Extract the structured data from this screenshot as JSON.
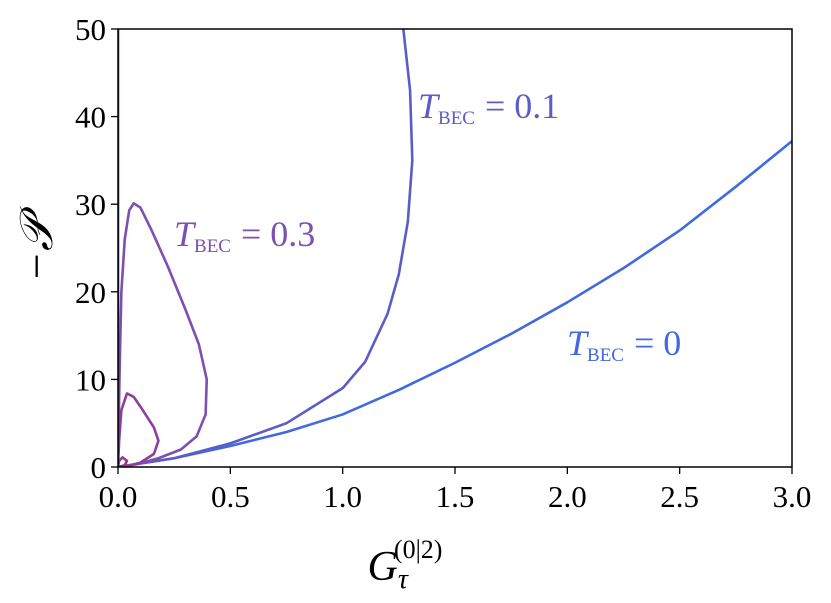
{
  "chart_data": {
    "type": "line",
    "xlabel": {
      "base": "G",
      "sub": "τ",
      "sup": "(0|2)"
    },
    "ylabel": "−𝒫",
    "xlim": [
      0,
      3
    ],
    "ylim": [
      0,
      50
    ],
    "xticks": [
      {
        "value": 0,
        "label": "0.0"
      },
      0.5,
      {
        "value": 1,
        "label": "1.0"
      },
      1.5,
      {
        "value": 2,
        "label": "2.0"
      },
      2.5,
      {
        "value": 3,
        "label": "3.0"
      }
    ],
    "yticks": [
      0,
      10,
      20,
      30,
      40,
      50
    ],
    "series": [
      {
        "label": {
          "symbol": "T",
          "subscript": "BEC",
          "value": "= 0"
        },
        "color": "#4169e1",
        "x": [
          0,
          0.25,
          0.5,
          0.75,
          1.0,
          1.25,
          1.5,
          1.75,
          2.0,
          2.25,
          2.5,
          2.75,
          3.0
        ],
        "values": [
          0,
          1.0,
          2.4,
          4.0,
          6.0,
          8.8,
          11.9,
          15.2,
          18.8,
          22.7,
          27.0,
          32.0,
          37.2
        ]
      },
      {
        "label": {
          "symbol": "T",
          "subscript": "BEC",
          "value": "= 0.1"
        },
        "color": "#5b5cc8",
        "x": [
          0,
          0.25,
          0.5,
          0.75,
          1.0,
          1.1,
          1.2,
          1.25,
          1.29,
          1.31,
          1.3,
          1.27
        ],
        "values": [
          0,
          1.0,
          2.7,
          5.0,
          9.0,
          12.0,
          17.5,
          22.0,
          28.0,
          35.0,
          43.0,
          50.0
        ]
      },
      {
        "label": {
          "symbol": "T",
          "subscript": "BEC",
          "value": "= 0.3"
        },
        "color": "#7d4fb0",
        "x": [
          0,
          0.003,
          0.008,
          0.015,
          0.03,
          0.05,
          0.07,
          0.1,
          0.15,
          0.22,
          0.3,
          0.36,
          0.395,
          0.39,
          0.35,
          0.28,
          0.18,
          0.08,
          0
        ],
        "values": [
          0,
          5,
          12,
          20,
          26,
          29.3,
          30.1,
          29.6,
          27,
          23,
          18,
          14,
          10,
          6,
          3.5,
          2,
          1,
          0.3,
          0
        ]
      },
      {
        "color": "#8e3f9e",
        "x": [
          0,
          0.005,
          0.015,
          0.04,
          0.07,
          0.11,
          0.16,
          0.18,
          0.16,
          0.1,
          0.04,
          0
        ],
        "values": [
          0,
          3,
          6.5,
          8.4,
          8,
          6.5,
          4.5,
          3,
          1.5,
          0.5,
          0.1,
          0
        ]
      },
      {
        "color": "#9b3590",
        "x": [
          0,
          0.005,
          0.02,
          0.04,
          0.03,
          0
        ],
        "values": [
          0,
          0.7,
          1.1,
          0.7,
          0.2,
          0
        ]
      },
      {
        "color": "#3b2f80",
        "x": [
          0,
          0
        ],
        "values": [
          0,
          50
        ]
      }
    ]
  }
}
